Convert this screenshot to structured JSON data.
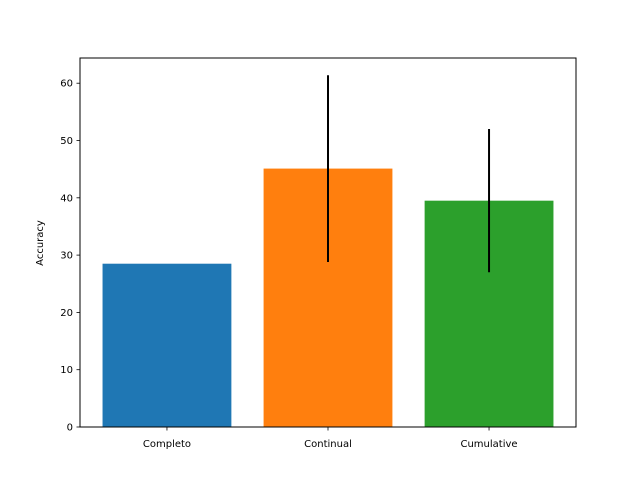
{
  "chart_data": {
    "type": "bar",
    "title": "",
    "xlabel": "",
    "ylabel": "Accuracy",
    "ylim": [
      0,
      64.4
    ],
    "yticks": [
      0,
      10,
      20,
      30,
      40,
      50,
      60
    ],
    "grid": false,
    "categories": [
      "Completo",
      "Continual",
      "Cumulative"
    ],
    "values": [
      28.5,
      45.1,
      39.5
    ],
    "error_bars": [
      0,
      16.3,
      12.5
    ],
    "colors": [
      "#1f77b4",
      "#ff7f0e",
      "#2ca02c"
    ],
    "error_bar_color": "#000000"
  }
}
